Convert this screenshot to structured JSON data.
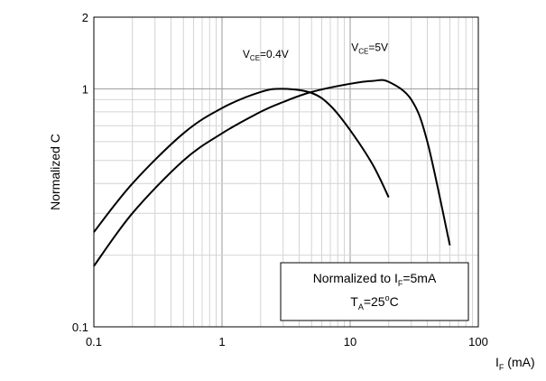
{
  "chart_data": {
    "type": "line",
    "x_scale": "log",
    "y_scale": "log",
    "xlim": [
      0.1,
      100
    ],
    "ylim": [
      0.1,
      2
    ],
    "x_ticks": [
      {
        "value": 0.1,
        "label": "0.1"
      },
      {
        "value": 1,
        "label": "1"
      },
      {
        "value": 10,
        "label": "10"
      },
      {
        "value": 100,
        "label": "100"
      }
    ],
    "y_ticks": [
      {
        "value": 0.1,
        "label": "0.1"
      },
      {
        "value": 1,
        "label": "1"
      },
      {
        "value": 2,
        "label": "2"
      }
    ],
    "xlabel": {
      "main": "I",
      "sub": "F",
      "rest": " (mA)"
    },
    "ylabel": "Normalized C",
    "grid": true,
    "series": [
      {
        "name": "V_CE=0.4V",
        "points": [
          [
            0.1,
            0.25
          ],
          [
            0.2,
            0.4
          ],
          [
            0.5,
            0.65
          ],
          [
            1.0,
            0.83
          ],
          [
            2.0,
            0.97
          ],
          [
            3.0,
            1.0
          ],
          [
            5.0,
            0.96
          ],
          [
            7.0,
            0.85
          ],
          [
            10.0,
            0.67
          ],
          [
            15.0,
            0.48
          ],
          [
            20.0,
            0.35
          ]
        ]
      },
      {
        "name": "V_CE=5V",
        "points": [
          [
            0.1,
            0.18
          ],
          [
            0.2,
            0.3
          ],
          [
            0.5,
            0.5
          ],
          [
            1.0,
            0.65
          ],
          [
            2.0,
            0.8
          ],
          [
            3.0,
            0.88
          ],
          [
            5.0,
            0.97
          ],
          [
            10.0,
            1.05
          ],
          [
            15.0,
            1.08
          ],
          [
            20.0,
            1.07
          ],
          [
            30.0,
            0.9
          ],
          [
            40.0,
            0.6
          ],
          [
            60.0,
            0.22
          ]
        ]
      }
    ],
    "series_labels": [
      {
        "v": "V",
        "sub": "CE",
        "rest": "=0.4V"
      },
      {
        "v": "V",
        "sub": "CE",
        "rest": "=5V"
      }
    ],
    "annotation": {
      "line1_main": "Normalized to I",
      "line1_sub": "F",
      "line1_rest": "=5mA",
      "line2_main": "T",
      "line2_sub": "A",
      "line2_mid": "=25",
      "line2_sup": "o",
      "line2_rest": "C"
    }
  }
}
